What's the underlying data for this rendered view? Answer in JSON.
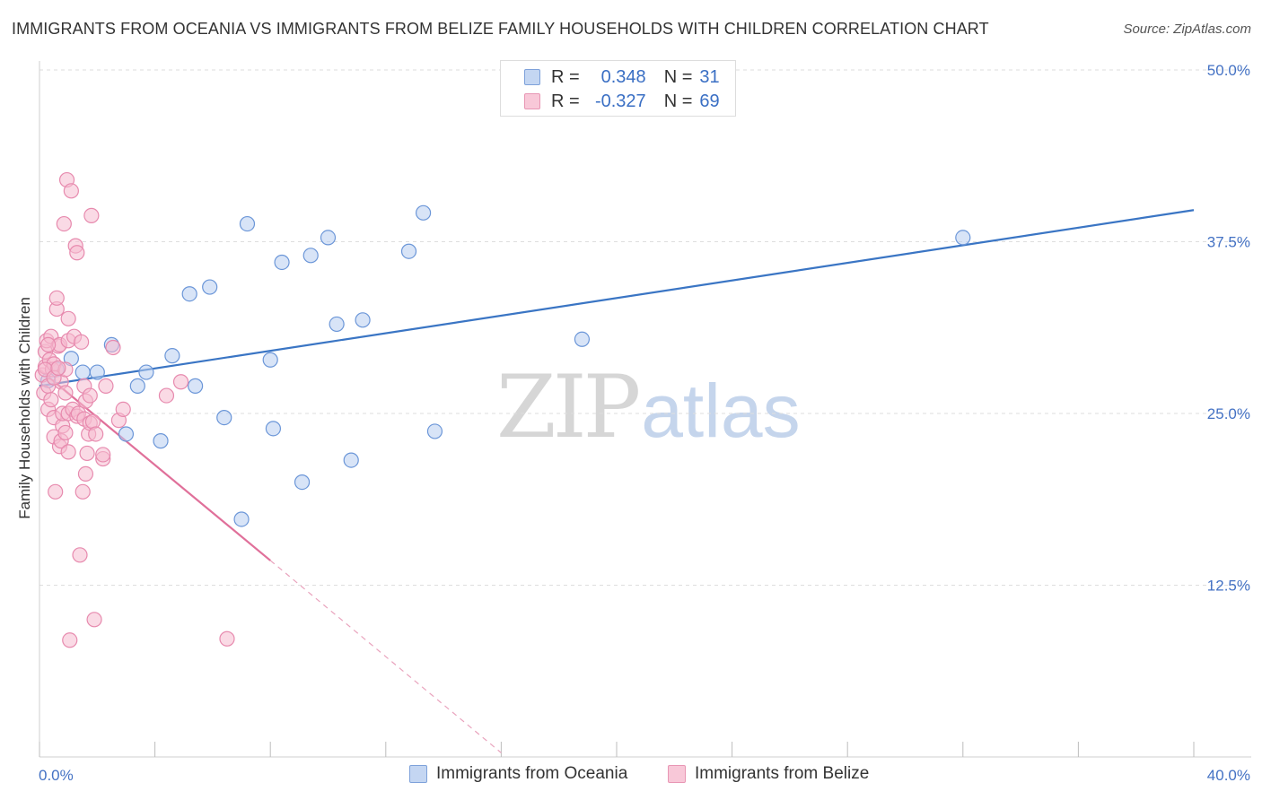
{
  "title": "IMMIGRANTS FROM OCEANIA VS IMMIGRANTS FROM BELIZE FAMILY HOUSEHOLDS WITH CHILDREN CORRELATION CHART",
  "source": "Source: ZipAtlas.com",
  "watermark": {
    "zip": "ZIP",
    "atlas": "atlas"
  },
  "colors": {
    "blue": "#3a75c4",
    "blue_fill": "#b8cdf0",
    "pink": "#e0709a",
    "pink_fill": "#f6bbd0",
    "axis_label": "#4472c4"
  },
  "legend_top": {
    "rows": [
      {
        "r_label": "R =",
        "r_value": "0.348",
        "n_label": "N =",
        "n_value": "31"
      },
      {
        "r_label": "R =",
        "r_value": "-0.327",
        "n_label": "N =",
        "n_value": "69"
      }
    ]
  },
  "chart_data": {
    "type": "scatter",
    "title": "IMMIGRANTS FROM OCEANIA VS IMMIGRANTS FROM BELIZE FAMILY HOUSEHOLDS WITH CHILDREN CORRELATION CHART",
    "xlabel": "",
    "ylabel": "Family Households with Children",
    "xlim": [
      0,
      40
    ],
    "ylim": [
      0,
      50
    ],
    "x_tick_labels": [
      "0.0%",
      "40.0%"
    ],
    "y_ticks": [
      12.5,
      25.0,
      37.5,
      50.0
    ],
    "y_tick_labels": [
      "12.5%",
      "25.0%",
      "37.5%",
      "50.0%"
    ],
    "series": [
      {
        "name": "Immigrants from Oceania",
        "color": "#3a75c4",
        "R": 0.348,
        "N": 31,
        "points": [
          [
            1.1,
            29.0
          ],
          [
            1.5,
            28.0
          ],
          [
            2.0,
            28.0
          ],
          [
            2.5,
            30.0
          ],
          [
            3.0,
            23.5
          ],
          [
            3.4,
            27.0
          ],
          [
            3.7,
            28.0
          ],
          [
            4.2,
            23.0
          ],
          [
            4.6,
            29.2
          ],
          [
            5.2,
            33.7
          ],
          [
            5.4,
            27.0
          ],
          [
            5.9,
            34.2
          ],
          [
            6.4,
            24.7
          ],
          [
            7.0,
            17.3
          ],
          [
            7.2,
            38.8
          ],
          [
            8.0,
            28.9
          ],
          [
            8.4,
            36.0
          ],
          [
            8.1,
            23.9
          ],
          [
            9.1,
            20.0
          ],
          [
            9.4,
            36.5
          ],
          [
            10.0,
            37.8
          ],
          [
            10.3,
            31.5
          ],
          [
            10.8,
            21.6
          ],
          [
            11.2,
            31.8
          ],
          [
            12.8,
            36.8
          ],
          [
            13.3,
            39.6
          ],
          [
            13.7,
            23.7
          ],
          [
            18.8,
            30.4
          ],
          [
            32.0,
            37.8
          ],
          [
            0.6,
            28.2
          ],
          [
            0.3,
            27.4
          ]
        ],
        "trend": {
          "x0": 0,
          "y0": 27.0,
          "x1": 40,
          "y1": 39.8
        }
      },
      {
        "name": "Immigrants from Belize",
        "color": "#e0709a",
        "R": -0.327,
        "N": 69,
        "points": [
          [
            0.1,
            27.8
          ],
          [
            0.15,
            26.5
          ],
          [
            0.2,
            29.5
          ],
          [
            0.2,
            28.4
          ],
          [
            0.25,
            30.3
          ],
          [
            0.3,
            27.0
          ],
          [
            0.3,
            25.3
          ],
          [
            0.35,
            28.9
          ],
          [
            0.4,
            30.6
          ],
          [
            0.4,
            26.0
          ],
          [
            0.45,
            28.2
          ],
          [
            0.5,
            23.3
          ],
          [
            0.5,
            24.7
          ],
          [
            0.5,
            28.6
          ],
          [
            0.55,
            19.3
          ],
          [
            0.6,
            32.6
          ],
          [
            0.6,
            33.4
          ],
          [
            0.65,
            29.9
          ],
          [
            0.7,
            30.0
          ],
          [
            0.7,
            22.6
          ],
          [
            0.75,
            27.3
          ],
          [
            0.75,
            23.0
          ],
          [
            0.8,
            24.1
          ],
          [
            0.8,
            25.0
          ],
          [
            0.85,
            38.8
          ],
          [
            0.9,
            28.2
          ],
          [
            0.9,
            23.6
          ],
          [
            0.9,
            26.5
          ],
          [
            0.95,
            42.0
          ],
          [
            1.0,
            31.9
          ],
          [
            1.0,
            30.3
          ],
          [
            1.0,
            25.0
          ],
          [
            1.0,
            22.2
          ],
          [
            1.05,
            8.5
          ],
          [
            1.1,
            41.2
          ],
          [
            1.15,
            25.3
          ],
          [
            1.2,
            30.6
          ],
          [
            1.25,
            37.2
          ],
          [
            1.3,
            36.7
          ],
          [
            1.3,
            24.8
          ],
          [
            1.35,
            25.0
          ],
          [
            1.4,
            14.7
          ],
          [
            1.45,
            30.2
          ],
          [
            1.5,
            19.3
          ],
          [
            1.55,
            24.6
          ],
          [
            1.55,
            27.0
          ],
          [
            1.6,
            25.9
          ],
          [
            1.6,
            20.6
          ],
          [
            1.65,
            22.1
          ],
          [
            1.7,
            23.5
          ],
          [
            1.75,
            24.3
          ],
          [
            1.75,
            26.3
          ],
          [
            1.8,
            39.4
          ],
          [
            1.85,
            24.4
          ],
          [
            1.9,
            10.0
          ],
          [
            1.95,
            23.5
          ],
          [
            2.2,
            21.7
          ],
          [
            2.2,
            22.0
          ],
          [
            2.3,
            27.0
          ],
          [
            2.55,
            29.8
          ],
          [
            2.75,
            24.5
          ],
          [
            2.9,
            25.3
          ],
          [
            4.4,
            26.3
          ],
          [
            4.9,
            27.3
          ],
          [
            6.5,
            8.6
          ],
          [
            0.2,
            28.2
          ],
          [
            0.3,
            30.0
          ],
          [
            0.5,
            27.6
          ],
          [
            0.65,
            28.3
          ]
        ],
        "trend": {
          "x0": 0,
          "y0": 28.2,
          "x1": 8.0,
          "y1": 14.3
        },
        "trend_extension": {
          "x0": 8.0,
          "y0": 14.3,
          "x1": 16.0,
          "y1": 0.3
        }
      }
    ]
  }
}
